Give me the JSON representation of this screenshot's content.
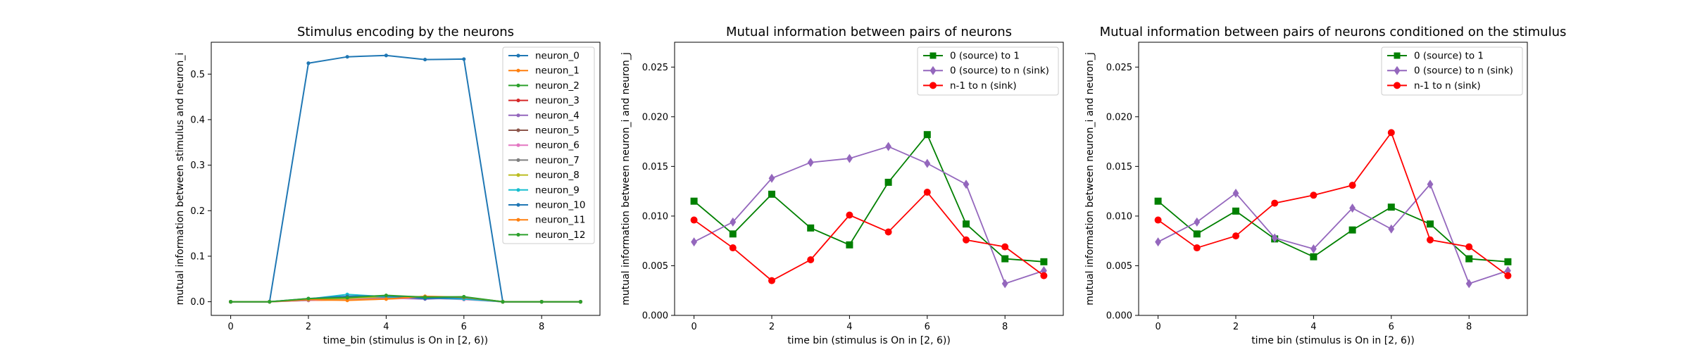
{
  "chart_data": [
    {
      "type": "line",
      "title": "Stimulus encoding by the neurons",
      "xlabel": "time_bin (stimulus is On in [2, 6))",
      "ylabel": "mutual information between stimulus and neuron_i",
      "xlim": [
        -0.5,
        9.5
      ],
      "ylim": [
        -0.03,
        0.57
      ],
      "xticks": [
        "0",
        "2",
        "4",
        "6",
        "8"
      ],
      "yticks": [
        "0.0",
        "0.1",
        "0.2",
        "0.3",
        "0.4",
        "0.5"
      ],
      "grid": false,
      "legend": "right",
      "x": [
        0,
        1,
        2,
        3,
        4,
        5,
        6,
        7,
        8,
        9
      ],
      "series": [
        {
          "name": "neuron_0",
          "color": "#1f77b4",
          "marker": "dot",
          "values": [
            0,
            0,
            0.524,
            0.538,
            0.541,
            0.532,
            0.533,
            0,
            0,
            0
          ]
        },
        {
          "name": "neuron_1",
          "color": "#ff7f0e",
          "marker": "dot",
          "values": [
            0,
            0,
            0.003,
            0.004,
            0.006,
            0.009,
            0.006,
            0,
            0,
            0
          ]
        },
        {
          "name": "neuron_2",
          "color": "#2ca02c",
          "marker": "dot",
          "values": [
            0,
            0,
            0.005,
            0.008,
            0.01,
            0.007,
            0.008,
            0,
            0,
            0
          ]
        },
        {
          "name": "neuron_3",
          "color": "#d62728",
          "marker": "dot",
          "values": [
            0,
            0,
            0.006,
            0.005,
            0.009,
            0.008,
            0.007,
            0,
            0,
            0
          ]
        },
        {
          "name": "neuron_4",
          "color": "#9467bd",
          "marker": "dot",
          "values": [
            0,
            0,
            0.004,
            0.007,
            0.008,
            0.006,
            0.009,
            0,
            0,
            0
          ]
        },
        {
          "name": "neuron_5",
          "color": "#8c564b",
          "marker": "dot",
          "values": [
            0,
            0,
            0.005,
            0.009,
            0.011,
            0.01,
            0.01,
            0,
            0,
            0
          ]
        },
        {
          "name": "neuron_6",
          "color": "#e377c2",
          "marker": "dot",
          "values": [
            0,
            0,
            0.003,
            0.006,
            0.007,
            0.008,
            0.005,
            0,
            0,
            0
          ]
        },
        {
          "name": "neuron_7",
          "color": "#7f7f7f",
          "marker": "dot",
          "values": [
            0,
            0,
            0.004,
            0.008,
            0.01,
            0.009,
            0.008,
            0,
            0,
            0
          ]
        },
        {
          "name": "neuron_8",
          "color": "#bcbd22",
          "marker": "dot",
          "values": [
            0,
            0,
            0.006,
            0.007,
            0.012,
            0.011,
            0.009,
            0,
            0,
            0
          ]
        },
        {
          "name": "neuron_9",
          "color": "#17becf",
          "marker": "dot",
          "values": [
            0,
            0,
            0.006,
            0.016,
            0.011,
            0.008,
            0.006,
            0,
            0,
            0
          ]
        },
        {
          "name": "neuron_10",
          "color": "#1f77b4",
          "marker": "dot",
          "values": [
            0,
            0,
            0.007,
            0.012,
            0.013,
            0.007,
            0.009,
            0,
            0,
            0
          ]
        },
        {
          "name": "neuron_11",
          "color": "#ff7f0e",
          "marker": "dot",
          "values": [
            0,
            0,
            0.005,
            0.003,
            0.006,
            0.012,
            0.01,
            0,
            0,
            0
          ]
        },
        {
          "name": "neuron_12",
          "color": "#2ca02c",
          "marker": "dot",
          "values": [
            0,
            0,
            0.007,
            0.009,
            0.014,
            0.01,
            0.011,
            0,
            0,
            0
          ]
        }
      ]
    },
    {
      "type": "line",
      "title": "Mutual information between pairs of neurons",
      "xlabel": "time bin (stimulus is On in [2, 6))",
      "ylabel": "mutual information between neuron_i and neuron_j",
      "xlim": [
        -0.5,
        9.5
      ],
      "ylim": [
        0,
        0.0275
      ],
      "xticks": [
        "0",
        "2",
        "4",
        "6",
        "8"
      ],
      "yticks": [
        "0.000",
        "0.005",
        "0.010",
        "0.015",
        "0.020",
        "0.025"
      ],
      "grid": false,
      "legend": "top-right",
      "x": [
        0,
        1,
        2,
        3,
        4,
        5,
        6,
        7,
        8,
        9
      ],
      "series": [
        {
          "name": "0 (source) to 1",
          "color": "#008000",
          "marker": "square",
          "values": [
            0.0115,
            0.0082,
            0.0122,
            0.0088,
            0.0071,
            0.0134,
            0.0182,
            0.0092,
            0.0057,
            0.0054
          ]
        },
        {
          "name": "0 (source) to n (sink)",
          "color": "#9467bd",
          "marker": "diamond",
          "values": [
            0.0074,
            0.0094,
            0.0138,
            0.0154,
            0.0158,
            0.017,
            0.0153,
            0.0132,
            0.0032,
            0.0045
          ]
        },
        {
          "name": "n-1 to n (sink)",
          "color": "#ff0000",
          "marker": "circle",
          "values": [
            0.0096,
            0.0068,
            0.0035,
            0.0056,
            0.0101,
            0.0084,
            0.0124,
            0.0076,
            0.0069,
            0.004
          ]
        }
      ]
    },
    {
      "type": "line",
      "title": "Mutual information between pairs of neurons conditioned on the stimulus",
      "xlabel": "time bin (stimulus is On in [2, 6))",
      "ylabel": "mutual information between neuron_i and neuron_j",
      "xlim": [
        -0.5,
        9.5
      ],
      "ylim": [
        0,
        0.0275
      ],
      "xticks": [
        "0",
        "2",
        "4",
        "6",
        "8"
      ],
      "yticks": [
        "0.000",
        "0.005",
        "0.010",
        "0.015",
        "0.020",
        "0.025"
      ],
      "grid": false,
      "legend": "top-right",
      "x": [
        0,
        1,
        2,
        3,
        4,
        5,
        6,
        7,
        8,
        9
      ],
      "series": [
        {
          "name": "0 (source) to 1",
          "color": "#008000",
          "marker": "square",
          "values": [
            0.0115,
            0.0082,
            0.0105,
            0.0077,
            0.0059,
            0.0086,
            0.0109,
            0.0092,
            0.0057,
            0.0054
          ]
        },
        {
          "name": "0 (source) to n (sink)",
          "color": "#9467bd",
          "marker": "diamond",
          "values": [
            0.0074,
            0.0094,
            0.0123,
            0.0078,
            0.0067,
            0.0108,
            0.0087,
            0.0132,
            0.0032,
            0.0045
          ]
        },
        {
          "name": "n-1 to n (sink)",
          "color": "#ff0000",
          "marker": "circle",
          "values": [
            0.0096,
            0.0068,
            0.008,
            0.0113,
            0.0121,
            0.0131,
            0.0184,
            0.0076,
            0.0069,
            0.004
          ]
        }
      ]
    }
  ]
}
